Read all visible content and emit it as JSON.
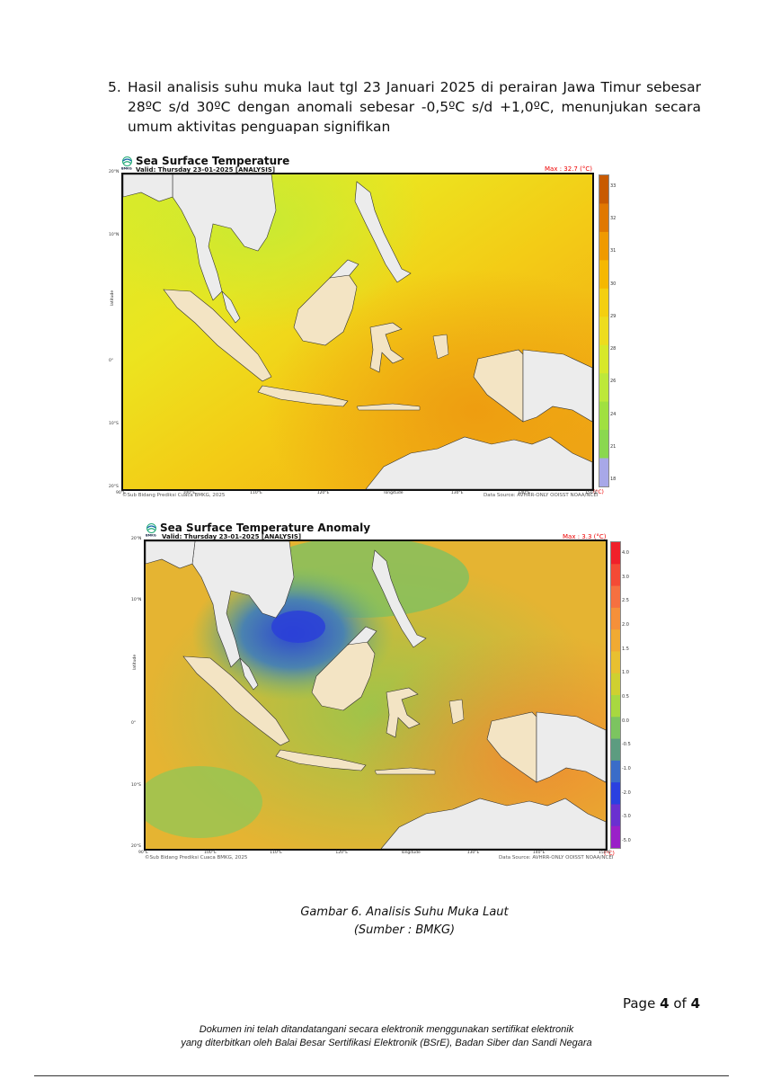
{
  "paragraph": {
    "number": "5.",
    "text": "Hasil analisis suhu muka laut tgl 23 Januari 2025 di perairan Jawa Timur sebesar 28ºC s/d 30ºC  dengan anomali sebesar -0,5ºC s/d +1,0ºC, menunjukan secara umum aktivitas penguapan signifikan"
  },
  "maps": [
    {
      "title": "Sea Surface Temperature",
      "valid": "Valid: Thursday 23-01-2025 [ANALYSIS]",
      "max": "Max : 32.7 (°C)",
      "unit": "(°C)",
      "credit": "©Sub Bidang Prediksi Cuaca BMKG, 2025",
      "source": "Data Source: AVHRR-ONLY OOISST NOAA/NCEI",
      "colorbar_ticks": [
        "33",
        "32",
        "31",
        "30",
        "29",
        "28",
        "26",
        "24",
        "21",
        "18"
      ],
      "colorbar_colors": [
        "#c85a00",
        "#e07800",
        "#ef9a00",
        "#f5b800",
        "#f4cf10",
        "#eddc1e",
        "#d7e82a",
        "#bde83a",
        "#a0e040",
        "#8ad850",
        "#a8a8e8"
      ],
      "x_ticks": [
        "90°E",
        "100°E",
        "110°E",
        "120°E",
        "longitude",
        "130°E",
        "140°E",
        "150°E"
      ],
      "y_ticks": [
        "20°N",
        "10°N",
        "latitude",
        "0°",
        "10°S",
        "20°S"
      ]
    },
    {
      "title": "Sea Surface Temperature Anomaly",
      "valid": "Valid: Thursday 23-01-2025 [ANALYSIS]",
      "max": "Max : 3.3 (°C)",
      "unit": "(°C)",
      "credit": "©Sub Bidang Prediksi Cuaca BMKG, 2025",
      "source": "Data Source: AVHRR-ONLY OOISST NOAA/NCEI",
      "colorbar_ticks": [
        "4.0",
        "3.0",
        "2.5",
        "2.0",
        "1.5",
        "1.0",
        "0.5",
        "0.0",
        "-0.5",
        "-1.0",
        "-2.0",
        "-3.0",
        "-5.0"
      ],
      "colorbar_colors": [
        "#f0202a",
        "#f44a35",
        "#f67040",
        "#f5903a",
        "#f0aa32",
        "#e8c030",
        "#cfd030",
        "#a8d840",
        "#7cc460",
        "#5c9c80",
        "#3a6cc8",
        "#2a40e0",
        "#6a30d0",
        "#9a20c8"
      ],
      "x_ticks": [
        "90°E",
        "100°E",
        "110°E",
        "120°E",
        "longitude",
        "130°E",
        "140°E",
        "150°E"
      ],
      "y_ticks": [
        "20°N",
        "10°N",
        "latitude",
        "0°",
        "10°S",
        "20°S"
      ]
    }
  ],
  "caption": {
    "line1": "Gambar 6. Analisis Suhu Muka Laut",
    "line2": "(Sumber : BMKG)"
  },
  "page": {
    "label": "Page",
    "current": "4",
    "of": "of",
    "total": "4"
  },
  "signature_note": {
    "line1": "Dokumen ini telah ditandatangani secara elektronik menggunakan sertifikat elektronik",
    "line2": "yang diterbitkan oleh Balai Besar Sertifikasi Elektronik (BSrE), Badan Siber dan Sandi Negara"
  }
}
